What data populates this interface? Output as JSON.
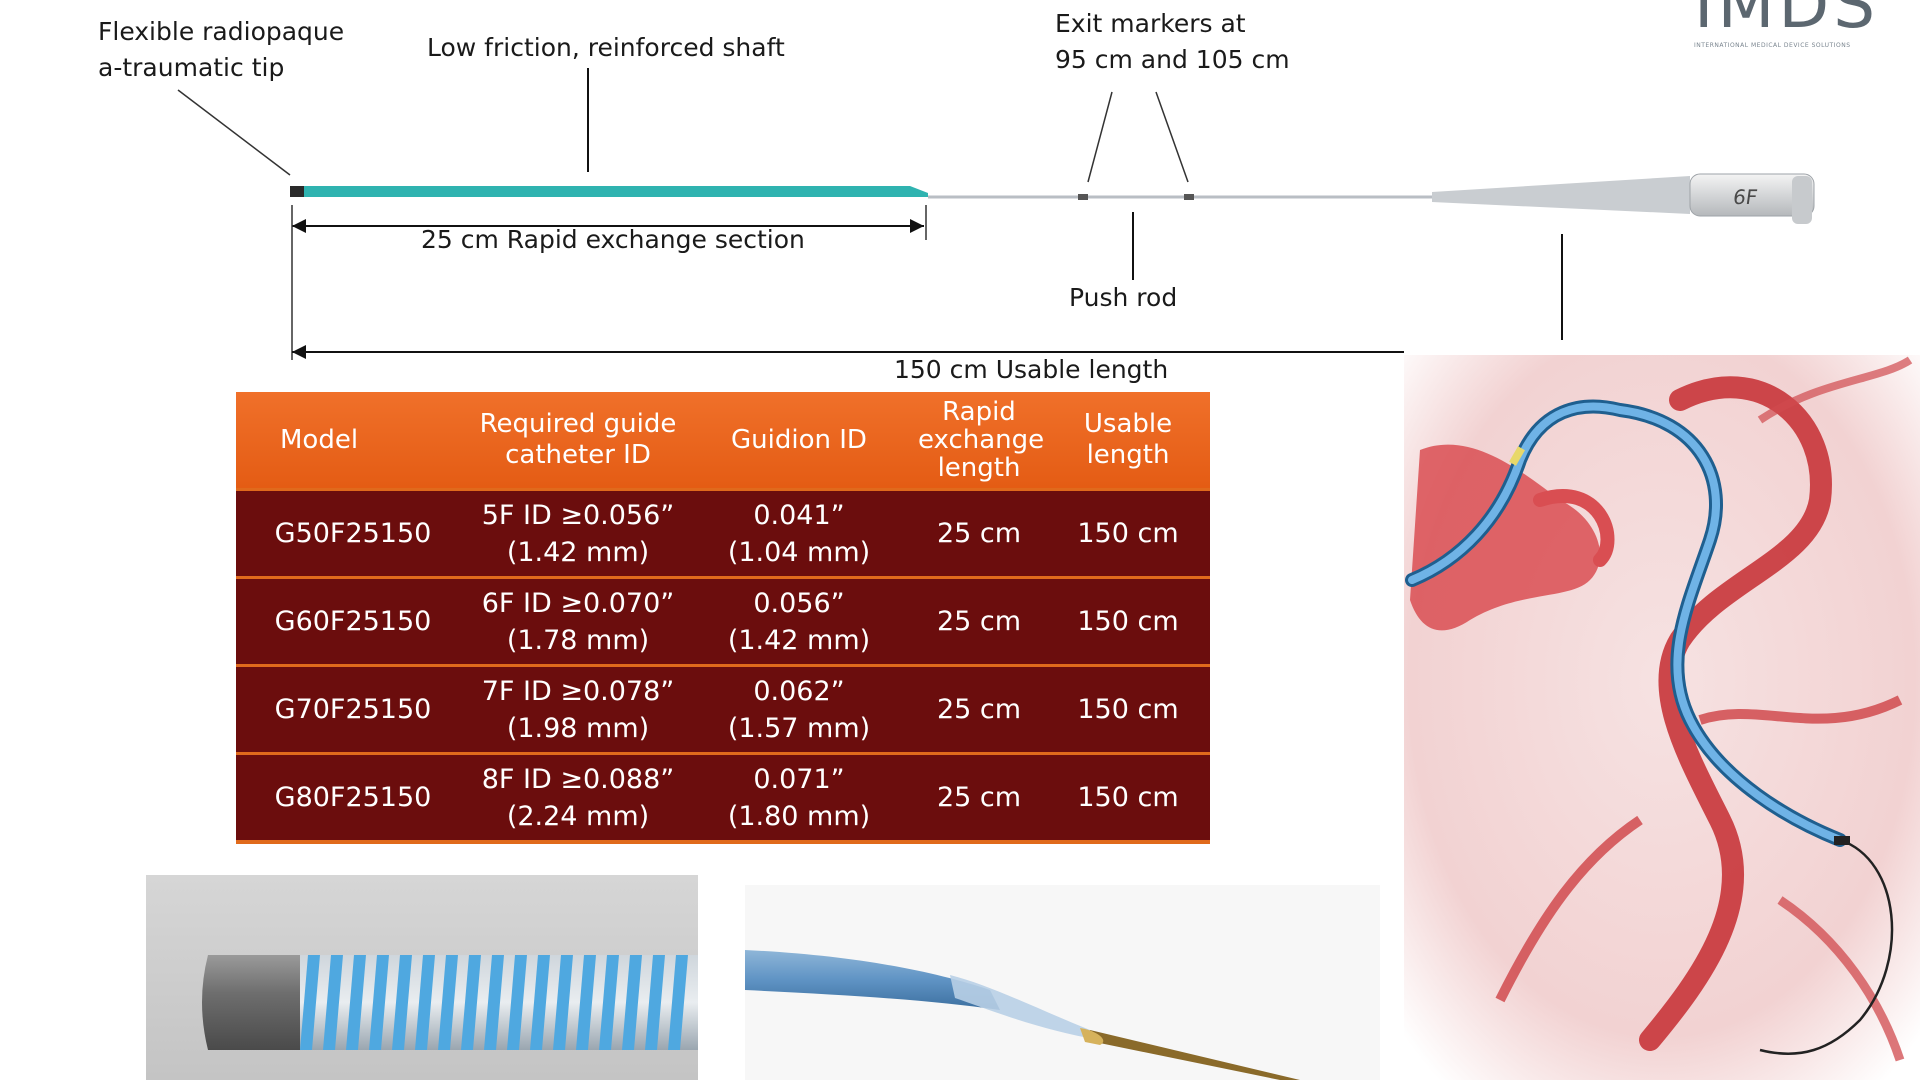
{
  "logo": {
    "text": "IMDS",
    "tagline": "INTERNATIONAL MEDICAL DEVICE SOLUTIONS"
  },
  "annotations": {
    "tip": [
      "Flexible radiopaque",
      "a-traumatic tip"
    ],
    "shaft": "Low friction, reinforced shaft",
    "exit_markers": [
      "Exit markers at",
      "95 cm and 105 cm"
    ],
    "rx_section": "25 cm Rapid exchange section",
    "push_rod": "Push rod",
    "usable_length": "150 cm Usable length",
    "hub_size": "6F"
  },
  "table": {
    "headers": [
      {
        "lines": [
          "Model"
        ]
      },
      {
        "lines": [
          "Required guide",
          "catheter ID"
        ]
      },
      {
        "lines": [
          "Guidion ID"
        ]
      },
      {
        "lines": [
          "Rapid",
          "exchange",
          "length"
        ]
      },
      {
        "lines": [
          "Usable",
          "length"
        ]
      }
    ],
    "rows": [
      {
        "model": "G50F25150",
        "guide_id": [
          "5F ID ≥0.056”",
          "(1.42 mm)"
        ],
        "guidion_id": [
          "0.041”",
          "(1.04 mm)"
        ],
        "rx_length": "25 cm",
        "usable_length": "150 cm"
      },
      {
        "model": "G60F25150",
        "guide_id": [
          "6F ID ≥0.070”",
          "(1.78 mm)"
        ],
        "guidion_id": [
          "0.056”",
          "(1.42 mm)"
        ],
        "rx_length": "25 cm",
        "usable_length": "150 cm"
      },
      {
        "model": "G70F25150",
        "guide_id": [
          "7F ID ≥0.078”",
          "(1.98 mm)"
        ],
        "guidion_id": [
          "0.062”",
          "(1.57 mm)"
        ],
        "rx_length": "25 cm",
        "usable_length": "150 cm"
      },
      {
        "model": "G80F25150",
        "guide_id": [
          "8F ID ≥0.088”",
          "(2.24 mm)"
        ],
        "guidion_id": [
          "0.071”",
          "(1.80 mm)"
        ],
        "rx_length": "25 cm",
        "usable_length": "150 cm"
      }
    ]
  },
  "colors": {
    "header_orange": "#e8611a",
    "row_maroon": "#6b0d0d",
    "catheter_teal": "#2fb3b0",
    "vessel_red": "#c8353a",
    "catheter_blue": "#4c9ad6"
  }
}
